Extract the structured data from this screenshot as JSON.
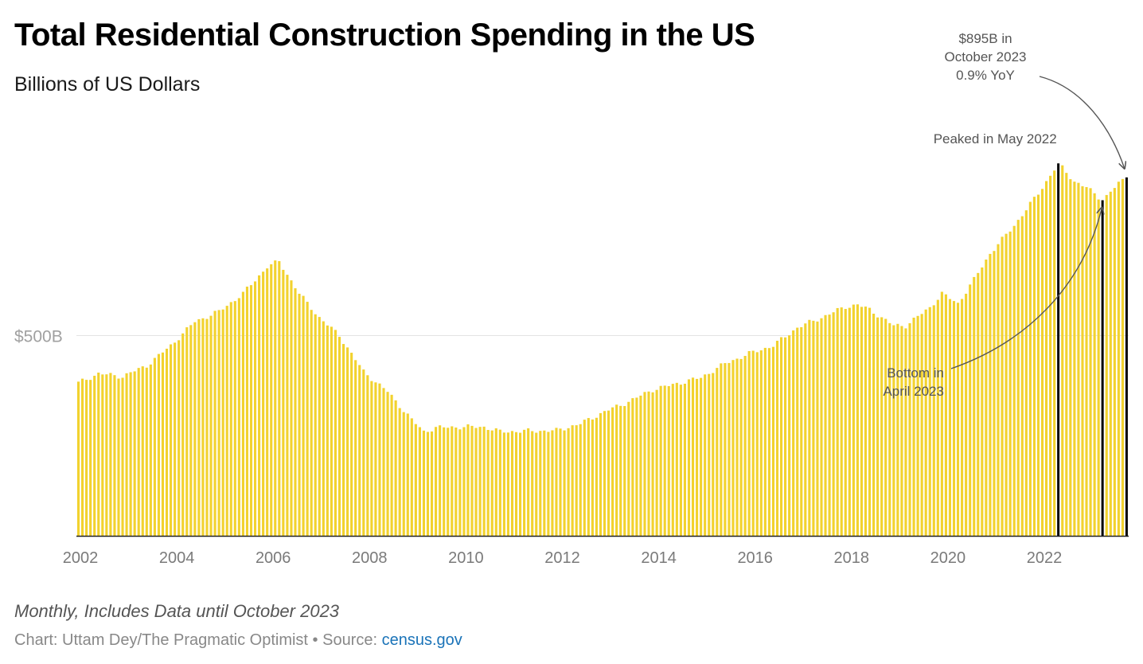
{
  "title": "Total Residential Construction Spending in the US",
  "subtitle": "Billions of US Dollars",
  "footer": {
    "note": "Monthly, Includes Data until October 2023",
    "credit_prefix": "Chart: Uttam Dey/The Pragmatic Optimist • Source: ",
    "source_link": "census.gov"
  },
  "colors": {
    "bar": "#f2d22e",
    "highlight": "#000000",
    "gridline": "#e3e3e3",
    "annotation": "#555555"
  },
  "chart_data": {
    "type": "bar",
    "frequency": "monthly",
    "x_start": "2002-01",
    "x_end": "2023-10",
    "xlim": [
      2002,
      2023.83
    ],
    "ylim": [
      0,
      1000
    ],
    "ytick_values": [
      500
    ],
    "ytick_labels": [
      "$500B"
    ],
    "xtick_labels": [
      "2002",
      "2004",
      "2006",
      "2008",
      "2010",
      "2012",
      "2014",
      "2016",
      "2018",
      "2020",
      "2022"
    ],
    "series_anchors": [
      [
        "2002-01",
        382
      ],
      [
        "2002-06",
        405
      ],
      [
        "2002-12",
        398
      ],
      [
        "2003-06",
        425
      ],
      [
        "2003-12",
        475
      ],
      [
        "2004-06",
        535
      ],
      [
        "2004-12",
        560
      ],
      [
        "2005-06",
        605
      ],
      [
        "2005-12",
        672
      ],
      [
        "2006-03",
        685
      ],
      [
        "2006-08",
        605
      ],
      [
        "2007-01",
        545
      ],
      [
        "2007-06",
        500
      ],
      [
        "2007-12",
        410
      ],
      [
        "2008-06",
        360
      ],
      [
        "2008-12",
        290
      ],
      [
        "2009-03",
        260
      ],
      [
        "2009-06",
        270
      ],
      [
        "2009-12",
        272
      ],
      [
        "2010-06",
        272
      ],
      [
        "2010-10",
        260
      ],
      [
        "2011-06",
        262
      ],
      [
        "2011-12",
        263
      ],
      [
        "2012-06",
        280
      ],
      [
        "2012-12",
        310
      ],
      [
        "2013-06",
        335
      ],
      [
        "2013-12",
        365
      ],
      [
        "2014-06",
        380
      ],
      [
        "2014-12",
        395
      ],
      [
        "2015-06",
        430
      ],
      [
        "2015-12",
        455
      ],
      [
        "2016-06",
        475
      ],
      [
        "2016-12",
        520
      ],
      [
        "2017-06",
        545
      ],
      [
        "2017-12",
        572
      ],
      [
        "2018-03",
        577
      ],
      [
        "2018-06",
        565
      ],
      [
        "2018-12",
        525
      ],
      [
        "2019-03",
        525
      ],
      [
        "2019-09",
        570
      ],
      [
        "2019-12",
        605
      ],
      [
        "2020-04",
        580
      ],
      [
        "2020-08",
        640
      ],
      [
        "2020-12",
        705
      ],
      [
        "2021-06",
        775
      ],
      [
        "2021-12",
        855
      ],
      [
        "2022-05",
        930
      ],
      [
        "2022-09",
        885
      ],
      [
        "2022-12",
        870
      ],
      [
        "2023-04",
        838
      ],
      [
        "2023-08",
        880
      ],
      [
        "2023-10",
        895
      ]
    ],
    "highlighted": [
      {
        "date": "2022-05",
        "value": 930
      },
      {
        "date": "2023-04",
        "value": 838
      },
      {
        "date": "2023-10",
        "value": 895
      }
    ],
    "annotations": [
      {
        "lines": [
          "Peaked in May 2022"
        ],
        "target": "2022-05"
      },
      {
        "lines": [
          "Bottom in",
          "April 2023"
        ],
        "target": "2023-04"
      },
      {
        "lines": [
          "$895B in",
          "October 2023",
          "0.9% YoY"
        ],
        "target": "2023-10"
      }
    ]
  }
}
